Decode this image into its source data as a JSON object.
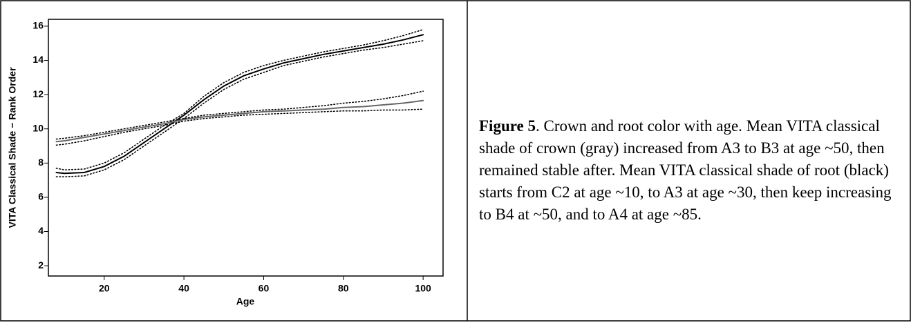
{
  "chart_data": {
    "type": "line",
    "xlabel": "Age",
    "ylabel": "VITA Classical Shade − Rank Order",
    "x": [
      8,
      10,
      15,
      20,
      25,
      30,
      35,
      40,
      45,
      50,
      55,
      60,
      65,
      70,
      75,
      80,
      85,
      90,
      95,
      100
    ],
    "series": [
      {
        "color": "#000000",
        "dash": false,
        "values": [
          7.45,
          7.4,
          7.45,
          7.8,
          8.4,
          9.2,
          10.0,
          10.8,
          11.7,
          12.5,
          13.1,
          13.5,
          13.85,
          14.1,
          14.35,
          14.55,
          14.75,
          14.95,
          15.2,
          15.5
        ]
      },
      {
        "color": "#000000",
        "dash": true,
        "values": [
          7.7,
          7.6,
          7.65,
          8.0,
          8.6,
          9.4,
          10.2,
          10.9,
          11.9,
          12.7,
          13.3,
          13.7,
          14.0,
          14.25,
          14.5,
          14.7,
          14.9,
          15.15,
          15.45,
          15.8
        ]
      },
      {
        "color": "#000000",
        "dash": true,
        "values": [
          7.2,
          7.2,
          7.25,
          7.6,
          8.2,
          9.0,
          9.8,
          10.6,
          11.5,
          12.3,
          12.9,
          13.3,
          13.7,
          13.95,
          14.2,
          14.4,
          14.6,
          14.75,
          14.95,
          15.15
        ]
      },
      {
        "color": "#666666",
        "dash": false,
        "values": [
          9.25,
          9.3,
          9.5,
          9.7,
          9.9,
          10.1,
          10.3,
          10.55,
          10.7,
          10.8,
          10.9,
          11.0,
          11.05,
          11.1,
          11.15,
          11.25,
          11.3,
          11.4,
          11.5,
          11.65
        ]
      },
      {
        "color": "#000000",
        "dash": true,
        "values": [
          9.4,
          9.45,
          9.6,
          9.8,
          10.0,
          10.2,
          10.4,
          10.6,
          10.8,
          10.9,
          11.0,
          11.1,
          11.15,
          11.25,
          11.35,
          11.5,
          11.6,
          11.75,
          11.95,
          12.2
        ]
      },
      {
        "color": "#000000",
        "dash": true,
        "values": [
          9.05,
          9.1,
          9.3,
          9.55,
          9.8,
          10.0,
          10.2,
          10.45,
          10.6,
          10.7,
          10.8,
          10.85,
          10.9,
          10.95,
          11.0,
          11.05,
          11.05,
          11.1,
          11.1,
          11.15
        ]
      }
    ],
    "xlim": [
      6,
      105
    ],
    "xticks": [
      20,
      40,
      60,
      80,
      100
    ],
    "ylim": [
      1.4,
      16.4
    ],
    "yticks": [
      2,
      4,
      6,
      8,
      10,
      12,
      14,
      16
    ]
  },
  "caption": {
    "label": "Figure 5",
    "text": ". Crown and root color with age. Mean VITA classical shade of crown (gray) increased from A3 to B3 at age ~50, then remained stable after. Mean VITA classical shade of root (black) starts from C2 at age ~10, to A3 at age ~30, then keep increasing to B4 at ~50, and to A4 at age ~85."
  }
}
